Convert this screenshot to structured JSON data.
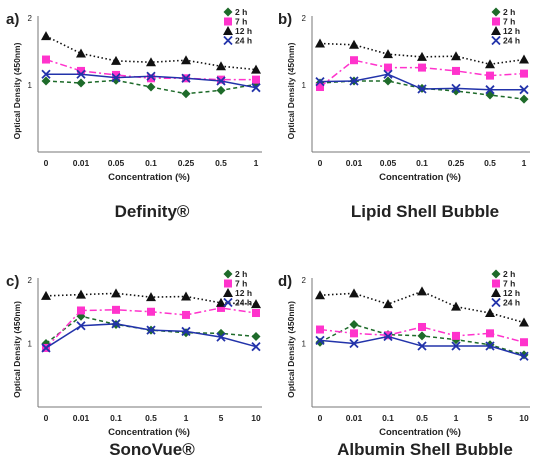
{
  "colors": {
    "2 h": "#1e6b2a",
    "7 h": "#ff33cc",
    "12 h": "#111111",
    "24 h": "#2233aa",
    "axis": "#777777",
    "text": "#222222"
  },
  "chart_data": [
    {
      "type": "line",
      "panel_label": "a)",
      "caption": "Definity®",
      "xlabel": "Concentration (%)",
      "ylabel": "Optical Density (450nm)",
      "x": [
        "0",
        "0.01",
        "0.05",
        "0.1",
        "0.25",
        "0.5",
        "1"
      ],
      "ylim": [
        0,
        2
      ],
      "y_ticks": [
        "2",
        "1"
      ],
      "grid": false,
      "legend_position": "top-right",
      "series": [
        {
          "name": "2 h",
          "marker": "diamond",
          "dash": "dash",
          "values": [
            1.06,
            1.03,
            1.07,
            0.97,
            0.87,
            0.92,
            1.01
          ]
        },
        {
          "name": "7 h",
          "marker": "square",
          "dash": "dashdot",
          "values": [
            1.38,
            1.21,
            1.15,
            1.1,
            1.1,
            1.08,
            1.08
          ]
        },
        {
          "name": "12 h",
          "marker": "triangle",
          "dash": "dot",
          "values": [
            1.73,
            1.47,
            1.36,
            1.34,
            1.37,
            1.28,
            1.23
          ]
        },
        {
          "name": "24 h",
          "marker": "x",
          "dash": "solid",
          "values": [
            1.16,
            1.16,
            1.11,
            1.13,
            1.1,
            1.06,
            0.96
          ]
        }
      ]
    },
    {
      "type": "line",
      "panel_label": "b)",
      "caption": "Lipid Shell Bubble",
      "xlabel": "Concentration (%)",
      "ylabel": "Optical Density (450nm)",
      "x": [
        "0",
        "0.01",
        "0.05",
        "0.1",
        "0.25",
        "0.5",
        "1"
      ],
      "ylim": [
        0,
        2
      ],
      "y_ticks": [
        "2",
        "1"
      ],
      "grid": false,
      "legend_position": "top-right",
      "series": [
        {
          "name": "2 h",
          "marker": "diamond",
          "dash": "dash",
          "values": [
            1.03,
            1.06,
            1.06,
            0.95,
            0.91,
            0.85,
            0.79
          ]
        },
        {
          "name": "7 h",
          "marker": "square",
          "dash": "dashdot",
          "values": [
            0.97,
            1.37,
            1.26,
            1.26,
            1.21,
            1.14,
            1.17
          ]
        },
        {
          "name": "12 h",
          "marker": "triangle",
          "dash": "dot",
          "values": [
            1.62,
            1.6,
            1.46,
            1.42,
            1.43,
            1.31,
            1.38
          ]
        },
        {
          "name": "24 h",
          "marker": "x",
          "dash": "solid",
          "values": [
            1.05,
            1.06,
            1.16,
            0.94,
            0.95,
            0.93,
            0.93
          ]
        }
      ]
    },
    {
      "type": "line",
      "panel_label": "c)",
      "caption": "SonoVue®",
      "xlabel": "Concentration (%)",
      "ylabel": "Optical Density (450nm)",
      "x": [
        "0",
        "0.01",
        "0.1",
        "0.5",
        "1",
        "5",
        "10"
      ],
      "ylim": [
        0,
        2
      ],
      "y_ticks": [
        "2",
        "1"
      ],
      "grid": false,
      "legend_position": "top-right",
      "series": [
        {
          "name": "2 h",
          "marker": "diamond",
          "dash": "dash",
          "values": [
            1.0,
            1.43,
            1.3,
            1.21,
            1.17,
            1.16,
            1.11
          ]
        },
        {
          "name": "7 h",
          "marker": "square",
          "dash": "dashdot",
          "values": [
            0.93,
            1.52,
            1.53,
            1.5,
            1.45,
            1.56,
            1.48
          ]
        },
        {
          "name": "12 h",
          "marker": "triangle",
          "dash": "dot",
          "values": [
            1.75,
            1.77,
            1.79,
            1.73,
            1.74,
            1.64,
            1.62
          ]
        },
        {
          "name": "24 h",
          "marker": "x",
          "dash": "solid",
          "values": [
            0.93,
            1.28,
            1.31,
            1.21,
            1.19,
            1.1,
            0.95
          ]
        }
      ]
    },
    {
      "type": "line",
      "panel_label": "d)",
      "caption": "Albumin Shell Bubble",
      "xlabel": "Concentration (%)",
      "ylabel": "Optical Density (450nm)",
      "x": [
        "0",
        "0.01",
        "0.1",
        "0.5",
        "1",
        "5",
        "10"
      ],
      "ylim": [
        0,
        2
      ],
      "y_ticks": [
        "2",
        "1"
      ],
      "grid": false,
      "legend_position": "top-right",
      "series": [
        {
          "name": "2 h",
          "marker": "diamond",
          "dash": "dash",
          "values": [
            1.02,
            1.3,
            1.14,
            1.12,
            1.06,
            0.98,
            0.82
          ]
        },
        {
          "name": "7 h",
          "marker": "square",
          "dash": "dashdot",
          "values": [
            1.22,
            1.16,
            1.13,
            1.26,
            1.12,
            1.16,
            1.02
          ]
        },
        {
          "name": "12 h",
          "marker": "triangle",
          "dash": "dot",
          "values": [
            1.76,
            1.79,
            1.62,
            1.82,
            1.58,
            1.48,
            1.33
          ]
        },
        {
          "name": "24 h",
          "marker": "x",
          "dash": "solid",
          "values": [
            1.05,
            1.0,
            1.11,
            0.96,
            0.96,
            0.96,
            0.8
          ]
        }
      ]
    }
  ]
}
